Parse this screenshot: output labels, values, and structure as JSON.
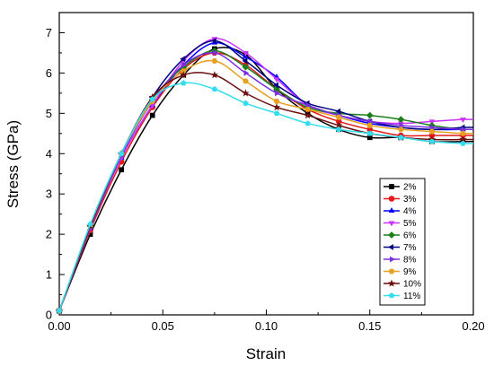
{
  "chart_data": {
    "type": "line",
    "title": "",
    "xlabel": "Strain",
    "ylabel": "Stress (GPa)",
    "xlim": [
      0.0,
      0.2
    ],
    "ylim": [
      0,
      7.5
    ],
    "x_ticks": [
      "0.00",
      "0.05",
      "0.10",
      "0.15",
      "0.20"
    ],
    "y_ticks": [
      "0",
      "1",
      "2",
      "3",
      "4",
      "5",
      "6",
      "7"
    ],
    "grid": false,
    "legend_position": "lower-right inside",
    "series": [
      {
        "name": "2%",
        "color": "#000000",
        "marker": "square",
        "x": [
          0,
          0.015,
          0.03,
          0.045,
          0.06,
          0.075,
          0.09,
          0.105,
          0.12,
          0.135,
          0.15,
          0.165,
          0.18,
          0.195
        ],
        "y": [
          0.1,
          2.0,
          3.6,
          4.95,
          5.95,
          6.6,
          6.45,
          5.6,
          5.0,
          4.6,
          4.4,
          4.4,
          4.3,
          4.3
        ]
      },
      {
        "name": "3%",
        "color": "#e41a1c",
        "marker": "circle",
        "x": [
          0,
          0.015,
          0.03,
          0.045,
          0.06,
          0.075,
          0.09,
          0.105,
          0.12,
          0.135,
          0.15,
          0.165,
          0.18,
          0.195
        ],
        "y": [
          0.1,
          2.1,
          3.8,
          5.15,
          6.1,
          6.5,
          6.2,
          5.6,
          5.1,
          4.8,
          4.6,
          4.45,
          4.45,
          4.45
        ]
      },
      {
        "name": "4%",
        "color": "#0000ff",
        "marker": "triangle-up",
        "x": [
          0,
          0.015,
          0.03,
          0.045,
          0.06,
          0.075,
          0.09,
          0.105,
          0.12,
          0.135,
          0.15,
          0.165,
          0.18,
          0.195
        ],
        "y": [
          0.1,
          2.15,
          3.9,
          5.2,
          6.2,
          6.75,
          6.4,
          5.9,
          5.2,
          4.95,
          4.75,
          4.65,
          4.6,
          4.6
        ]
      },
      {
        "name": "5%",
        "color": "#cc33ff",
        "marker": "triangle-down",
        "x": [
          0,
          0.015,
          0.03,
          0.045,
          0.06,
          0.075,
          0.09,
          0.105,
          0.12,
          0.135,
          0.15,
          0.165,
          0.18,
          0.195
        ],
        "y": [
          0.1,
          2.15,
          3.9,
          5.2,
          6.3,
          6.85,
          6.5,
          5.85,
          5.2,
          4.95,
          4.8,
          4.75,
          4.8,
          4.85
        ]
      },
      {
        "name": "6%",
        "color": "#1a7f1a",
        "marker": "diamond",
        "x": [
          0,
          0.015,
          0.03,
          0.045,
          0.06,
          0.075,
          0.09,
          0.105,
          0.12,
          0.135,
          0.15,
          0.165,
          0.18,
          0.195
        ],
        "y": [
          0.1,
          2.2,
          4.0,
          5.35,
          6.15,
          6.55,
          6.15,
          5.6,
          5.15,
          5.0,
          4.95,
          4.85,
          4.7,
          4.6
        ]
      },
      {
        "name": "7%",
        "color": "#000080",
        "marker": "triangle-left",
        "x": [
          0,
          0.015,
          0.03,
          0.045,
          0.06,
          0.075,
          0.09,
          0.105,
          0.12,
          0.135,
          0.15,
          0.165,
          0.18,
          0.195
        ],
        "y": [
          0.1,
          2.2,
          4.0,
          5.4,
          6.35,
          6.8,
          6.3,
          5.7,
          5.25,
          5.05,
          4.8,
          4.65,
          4.6,
          4.65
        ]
      },
      {
        "name": "8%",
        "color": "#7b2fe0",
        "marker": "triangle-right",
        "x": [
          0,
          0.015,
          0.03,
          0.045,
          0.06,
          0.075,
          0.09,
          0.105,
          0.12,
          0.135,
          0.15,
          0.165,
          0.18,
          0.195
        ],
        "y": [
          0.1,
          2.15,
          3.95,
          5.3,
          6.2,
          6.5,
          6.0,
          5.5,
          5.2,
          4.95,
          4.8,
          4.7,
          4.65,
          4.6
        ]
      },
      {
        "name": "9%",
        "color": "#e8a020",
        "marker": "hexagon",
        "x": [
          0,
          0.015,
          0.03,
          0.045,
          0.06,
          0.075,
          0.09,
          0.105,
          0.12,
          0.135,
          0.15,
          0.165,
          0.18,
          0.195
        ],
        "y": [
          0.1,
          2.2,
          4.0,
          5.3,
          6.05,
          6.3,
          5.8,
          5.3,
          5.1,
          4.9,
          4.7,
          4.6,
          4.55,
          4.5
        ]
      },
      {
        "name": "10%",
        "color": "#6b0f0f",
        "marker": "star",
        "x": [
          0,
          0.015,
          0.03,
          0.045,
          0.06,
          0.075,
          0.09,
          0.105,
          0.12,
          0.135,
          0.15,
          0.165,
          0.18,
          0.195
        ],
        "y": [
          0.1,
          2.2,
          4.0,
          5.4,
          5.95,
          5.95,
          5.5,
          5.15,
          4.95,
          4.7,
          4.5,
          4.4,
          4.35,
          4.35
        ]
      },
      {
        "name": "11%",
        "color": "#33ddee",
        "marker": "pentagon",
        "x": [
          0,
          0.015,
          0.03,
          0.045,
          0.06,
          0.075,
          0.09,
          0.105,
          0.12,
          0.135,
          0.15,
          0.165,
          0.18,
          0.195
        ],
        "y": [
          0.1,
          2.25,
          4.0,
          5.35,
          5.75,
          5.6,
          5.25,
          5.0,
          4.75,
          4.6,
          4.5,
          4.4,
          4.3,
          4.25
        ]
      }
    ]
  }
}
